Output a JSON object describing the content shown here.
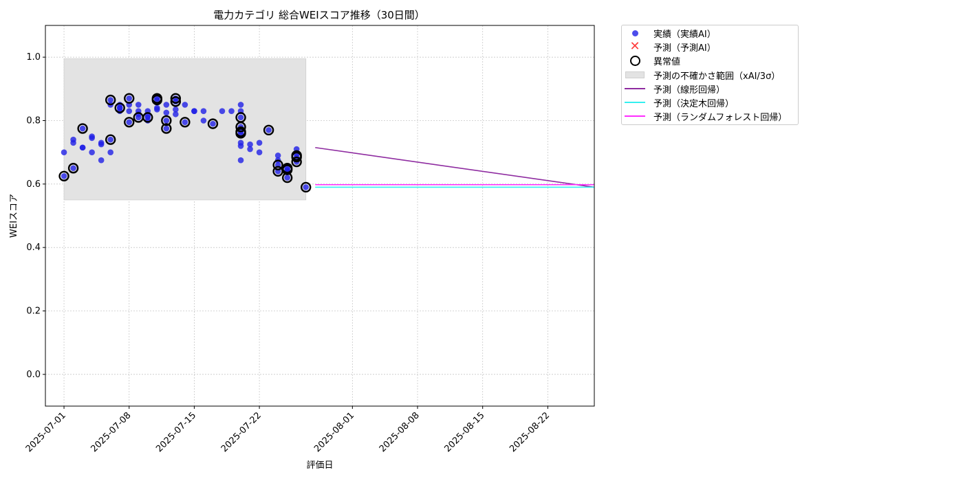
{
  "colors": {
    "actual": "#1f1fe6",
    "predicted_ai": "#ff3b3b",
    "anomaly": "#000000",
    "band": "#e3e3e3",
    "linear": "#8e2ba0",
    "tree": "#34f0f0",
    "forest": "#ff2cff"
  },
  "legend": [
    {
      "key": "actual",
      "label": "実績（実績AI）",
      "icon": "dot"
    },
    {
      "key": "predicted_ai",
      "label": "予測（予測AI）",
      "icon": "x-mark"
    },
    {
      "key": "anomaly",
      "label": "異常値",
      "icon": "ring"
    },
    {
      "key": "band",
      "label": "予測の不確かさ範囲（xAI/3σ）",
      "icon": "rect"
    },
    {
      "key": "linear",
      "label": "予測（線形回帰）",
      "icon": "line"
    },
    {
      "key": "tree",
      "label": "予測（決定木回帰）",
      "icon": "line"
    },
    {
      "key": "forest",
      "label": "予測（ランダムフォレスト回帰）",
      "icon": "line"
    }
  ],
  "chart_data": {
    "type": "scatter",
    "title": "電力カテゴリ 総合WEIスコア推移（30日間）",
    "xlabel": "評価日",
    "ylabel": "WEIスコア",
    "ylim": [
      -0.1,
      1.1
    ],
    "xlim": [
      "2025-06-29",
      "2025-08-27"
    ],
    "yticks": [
      "0.0",
      "0.2",
      "0.4",
      "0.6",
      "0.8",
      "1.0"
    ],
    "xticks": [
      "2025-07-01",
      "2025-07-08",
      "2025-07-15",
      "2025-07-22",
      "2025-08-01",
      "2025-08-08",
      "2025-08-15",
      "2025-08-22"
    ],
    "grid": true,
    "legend_position": "outside-top-right",
    "series": [
      {
        "name": "実績（実績AI）",
        "points": [
          [
            "2025-07-01",
            0.625
          ],
          [
            "2025-07-01",
            0.7
          ],
          [
            "2025-07-02",
            0.74
          ],
          [
            "2025-07-02",
            0.73
          ],
          [
            "2025-07-02",
            0.65
          ],
          [
            "2025-07-03",
            0.715
          ],
          [
            "2025-07-03",
            0.715
          ],
          [
            "2025-07-03",
            0.775
          ],
          [
            "2025-07-04",
            0.7
          ],
          [
            "2025-07-04",
            0.75
          ],
          [
            "2025-07-04",
            0.745
          ],
          [
            "2025-07-05",
            0.675
          ],
          [
            "2025-07-05",
            0.725
          ],
          [
            "2025-07-05",
            0.73
          ],
          [
            "2025-07-06",
            0.74
          ],
          [
            "2025-07-06",
            0.7
          ],
          [
            "2025-07-06",
            0.865
          ],
          [
            "2025-07-06",
            0.85
          ],
          [
            "2025-07-07",
            0.83
          ],
          [
            "2025-07-07",
            0.84
          ],
          [
            "2025-07-07",
            0.85
          ],
          [
            "2025-07-07",
            0.84
          ],
          [
            "2025-07-08",
            0.83
          ],
          [
            "2025-07-08",
            0.85
          ],
          [
            "2025-07-08",
            0.87
          ],
          [
            "2025-07-08",
            0.795
          ],
          [
            "2025-07-09",
            0.83
          ],
          [
            "2025-07-09",
            0.82
          ],
          [
            "2025-07-09",
            0.81
          ],
          [
            "2025-07-09",
            0.85
          ],
          [
            "2025-07-10",
            0.8
          ],
          [
            "2025-07-10",
            0.83
          ],
          [
            "2025-07-10",
            0.81
          ],
          [
            "2025-07-10",
            0.815
          ],
          [
            "2025-07-11",
            0.84
          ],
          [
            "2025-07-11",
            0.835
          ],
          [
            "2025-07-11",
            0.87
          ],
          [
            "2025-07-11",
            0.865
          ],
          [
            "2025-07-12",
            0.8
          ],
          [
            "2025-07-12",
            0.775
          ],
          [
            "2025-07-12",
            0.825
          ],
          [
            "2025-07-12",
            0.85
          ],
          [
            "2025-07-13",
            0.835
          ],
          [
            "2025-07-13",
            0.87
          ],
          [
            "2025-07-13",
            0.86
          ],
          [
            "2025-07-13",
            0.82
          ],
          [
            "2025-07-14",
            0.795
          ],
          [
            "2025-07-14",
            0.85
          ],
          [
            "2025-07-15",
            0.83
          ],
          [
            "2025-07-15",
            0.83
          ],
          [
            "2025-07-16",
            0.83
          ],
          [
            "2025-07-16",
            0.8
          ],
          [
            "2025-07-17",
            0.79
          ],
          [
            "2025-07-18",
            0.83
          ],
          [
            "2025-07-19",
            0.83
          ],
          [
            "2025-07-20",
            0.85
          ],
          [
            "2025-07-20",
            0.83
          ],
          [
            "2025-07-20",
            0.81
          ],
          [
            "2025-07-20",
            0.78
          ],
          [
            "2025-07-20",
            0.765
          ],
          [
            "2025-07-20",
            0.73
          ],
          [
            "2025-07-20",
            0.72
          ],
          [
            "2025-07-20",
            0.675
          ],
          [
            "2025-07-20",
            0.76
          ],
          [
            "2025-07-21",
            0.725
          ],
          [
            "2025-07-21",
            0.71
          ],
          [
            "2025-07-22",
            0.73
          ],
          [
            "2025-07-22",
            0.7
          ],
          [
            "2025-07-23",
            0.77
          ],
          [
            "2025-07-24",
            0.69
          ],
          [
            "2025-07-24",
            0.675
          ],
          [
            "2025-07-24",
            0.66
          ],
          [
            "2025-07-24",
            0.64
          ],
          [
            "2025-07-25",
            0.62
          ],
          [
            "2025-07-25",
            0.645
          ],
          [
            "2025-07-25",
            0.64
          ],
          [
            "2025-07-25",
            0.65
          ],
          [
            "2025-07-26",
            0.695
          ],
          [
            "2025-07-26",
            0.685
          ],
          [
            "2025-07-26",
            0.71
          ],
          [
            "2025-07-26",
            0.67
          ],
          [
            "2025-07-27",
            0.59
          ]
        ]
      },
      {
        "name": "異常値",
        "points": [
          [
            "2025-07-01",
            0.625
          ],
          [
            "2025-07-02",
            0.65
          ],
          [
            "2025-07-03",
            0.775
          ],
          [
            "2025-07-06",
            0.865
          ],
          [
            "2025-07-06",
            0.74
          ],
          [
            "2025-07-07",
            0.84
          ],
          [
            "2025-07-08",
            0.87
          ],
          [
            "2025-07-08",
            0.795
          ],
          [
            "2025-07-09",
            0.81
          ],
          [
            "2025-07-10",
            0.81
          ],
          [
            "2025-07-11",
            0.87
          ],
          [
            "2025-07-11",
            0.865
          ],
          [
            "2025-07-12",
            0.8
          ],
          [
            "2025-07-12",
            0.775
          ],
          [
            "2025-07-13",
            0.87
          ],
          [
            "2025-07-13",
            0.86
          ],
          [
            "2025-07-14",
            0.795
          ],
          [
            "2025-07-17",
            0.79
          ],
          [
            "2025-07-20",
            0.81
          ],
          [
            "2025-07-20",
            0.78
          ],
          [
            "2025-07-20",
            0.765
          ],
          [
            "2025-07-20",
            0.76
          ],
          [
            "2025-07-23",
            0.77
          ],
          [
            "2025-07-24",
            0.66
          ],
          [
            "2025-07-24",
            0.64
          ],
          [
            "2025-07-25",
            0.62
          ],
          [
            "2025-07-25",
            0.645
          ],
          [
            "2025-07-25",
            0.65
          ],
          [
            "2025-07-26",
            0.69
          ],
          [
            "2025-07-26",
            0.685
          ],
          [
            "2025-07-26",
            0.67
          ],
          [
            "2025-07-27",
            0.59
          ]
        ]
      },
      {
        "name": "予測の不確かさ範囲（xAI/3σ）",
        "x": [
          "2025-07-01",
          "2025-07-27"
        ],
        "y": [
          0.55,
          0.995
        ]
      },
      {
        "name": "予測（線形回帰）",
        "x": [
          "2025-07-28",
          "2025-08-27"
        ],
        "y": [
          0.715,
          0.59
        ]
      },
      {
        "name": "予測（決定木回帰）",
        "x": [
          "2025-07-28",
          "2025-08-27"
        ],
        "y": [
          0.59,
          0.59
        ]
      },
      {
        "name": "予測（ランダムフォレスト回帰）",
        "x": [
          "2025-07-28",
          "2025-08-27"
        ],
        "y": [
          0.598,
          0.598
        ]
      }
    ]
  }
}
